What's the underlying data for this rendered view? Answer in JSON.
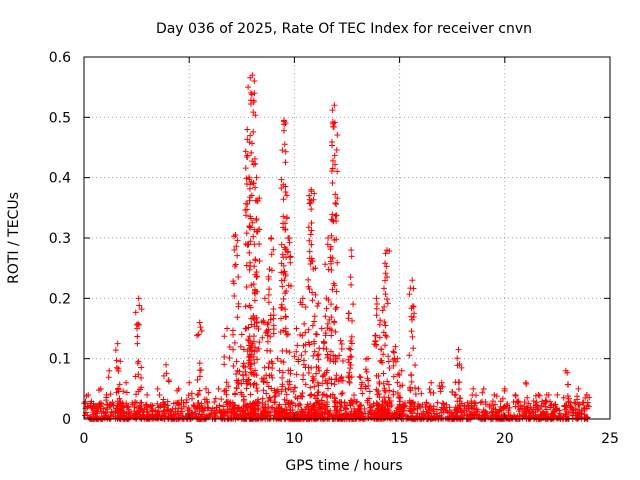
{
  "chart_data": {
    "type": "scatter",
    "title": "Day 036 of 2025, Rate Of TEC Index for receiver cnvn",
    "xlabel": "GPS time / hours",
    "ylabel": "ROTI / TECUs",
    "xlim": [
      0,
      25
    ],
    "ylim": [
      0,
      0.6
    ],
    "xticks": [
      0,
      5,
      10,
      15,
      20,
      25
    ],
    "yticks": [
      0,
      0.1,
      0.2,
      0.3,
      0.4,
      0.5,
      0.6
    ],
    "xtick_labels": [
      "0",
      "5",
      "10",
      "15",
      "20",
      "25"
    ],
    "ytick_labels": [
      "0",
      "0.1",
      "0.2",
      "0.3",
      "0.4",
      "0.5",
      "0.6"
    ],
    "grid": true,
    "marker": "+",
    "color": "#ff0000",
    "background_band": {
      "x": [
        0,
        24
      ],
      "y_max": 0.03
    },
    "spikes": [
      {
        "x": 0.2,
        "y_top": 0.04
      },
      {
        "x": 0.8,
        "y_top": 0.05
      },
      {
        "x": 1.2,
        "y_top": 0.08
      },
      {
        "x": 1.6,
        "y_top": 0.125
      },
      {
        "x": 2.0,
        "y_top": 0.06
      },
      {
        "x": 2.6,
        "y_top": 0.2
      },
      {
        "x": 3.0,
        "y_top": 0.04
      },
      {
        "x": 3.5,
        "y_top": 0.05
      },
      {
        "x": 3.9,
        "y_top": 0.09
      },
      {
        "x": 4.5,
        "y_top": 0.05
      },
      {
        "x": 5.0,
        "y_top": 0.06
      },
      {
        "x": 5.5,
        "y_top": 0.16
      },
      {
        "x": 5.8,
        "y_top": 0.05
      },
      {
        "x": 6.4,
        "y_top": 0.05
      },
      {
        "x": 6.8,
        "y_top": 0.15
      },
      {
        "x": 7.2,
        "y_top": 0.305
      },
      {
        "x": 7.5,
        "y_top": 0.14
      },
      {
        "x": 7.8,
        "y_top": 0.55
      },
      {
        "x": 8.0,
        "y_top": 0.57
      },
      {
        "x": 8.2,
        "y_top": 0.4
      },
      {
        "x": 8.6,
        "y_top": 0.2
      },
      {
        "x": 8.9,
        "y_top": 0.3
      },
      {
        "x": 9.2,
        "y_top": 0.1
      },
      {
        "x": 9.5,
        "y_top": 0.495
      },
      {
        "x": 9.7,
        "y_top": 0.3
      },
      {
        "x": 10.1,
        "y_top": 0.15
      },
      {
        "x": 10.4,
        "y_top": 0.2
      },
      {
        "x": 10.8,
        "y_top": 0.38
      },
      {
        "x": 11.0,
        "y_top": 0.25
      },
      {
        "x": 11.3,
        "y_top": 0.15
      },
      {
        "x": 11.6,
        "y_top": 0.3
      },
      {
        "x": 11.9,
        "y_top": 0.52
      },
      {
        "x": 12.2,
        "y_top": 0.13
      },
      {
        "x": 12.7,
        "y_top": 0.28
      },
      {
        "x": 13.1,
        "y_top": 0.07
      },
      {
        "x": 13.5,
        "y_top": 0.1
      },
      {
        "x": 13.9,
        "y_top": 0.2
      },
      {
        "x": 14.2,
        "y_top": 0.18
      },
      {
        "x": 14.4,
        "y_top": 0.28
      },
      {
        "x": 14.8,
        "y_top": 0.12
      },
      {
        "x": 15.1,
        "y_top": 0.08
      },
      {
        "x": 15.6,
        "y_top": 0.23
      },
      {
        "x": 15.9,
        "y_top": 0.05
      },
      {
        "x": 16.5,
        "y_top": 0.06
      },
      {
        "x": 17.0,
        "y_top": 0.06
      },
      {
        "x": 17.5,
        "y_top": 0.045
      },
      {
        "x": 17.8,
        "y_top": 0.115
      },
      {
        "x": 18.5,
        "y_top": 0.05
      },
      {
        "x": 19.0,
        "y_top": 0.05
      },
      {
        "x": 19.5,
        "y_top": 0.04
      },
      {
        "x": 20.0,
        "y_top": 0.05
      },
      {
        "x": 20.5,
        "y_top": 0.04
      },
      {
        "x": 21.0,
        "y_top": 0.06
      },
      {
        "x": 21.6,
        "y_top": 0.04
      },
      {
        "x": 22.0,
        "y_top": 0.04
      },
      {
        "x": 22.5,
        "y_top": 0.04
      },
      {
        "x": 22.9,
        "y_top": 0.08
      },
      {
        "x": 23.5,
        "y_top": 0.05
      },
      {
        "x": 23.9,
        "y_top": 0.04
      }
    ]
  }
}
